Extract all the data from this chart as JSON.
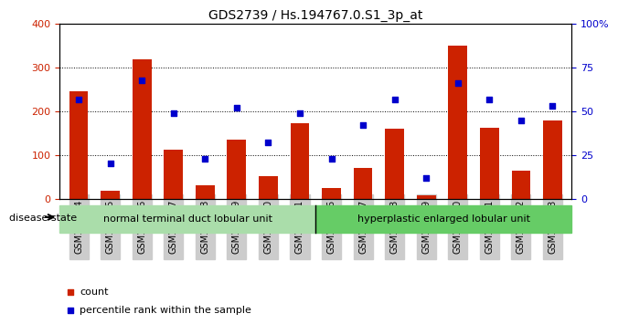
{
  "title": "GDS2739 / Hs.194767.0.S1_3p_at",
  "samples": [
    "GSM177454",
    "GSM177455",
    "GSM177456",
    "GSM177457",
    "GSM177458",
    "GSM177459",
    "GSM177460",
    "GSM177461",
    "GSM177446",
    "GSM177447",
    "GSM177448",
    "GSM177449",
    "GSM177450",
    "GSM177451",
    "GSM177452",
    "GSM177453"
  ],
  "counts": [
    245,
    18,
    320,
    113,
    30,
    135,
    52,
    172,
    25,
    70,
    160,
    8,
    350,
    163,
    63,
    178
  ],
  "percentiles": [
    57,
    20,
    68,
    49,
    23,
    52,
    32,
    49,
    23,
    42,
    57,
    12,
    66,
    57,
    45,
    53
  ],
  "bar_color": "#cc2200",
  "marker_color": "#0000cc",
  "group1_label": "normal terminal duct lobular unit",
  "group2_label": "hyperplastic enlarged lobular unit",
  "group1_color": "#aaddaa",
  "group2_color": "#66cc66",
  "disease_state_label": "disease state",
  "ylim_left": [
    0,
    400
  ],
  "ylim_right": [
    0,
    100
  ],
  "yticks_left": [
    0,
    100,
    200,
    300,
    400
  ],
  "yticks_right": [
    0,
    25,
    50,
    75,
    100
  ],
  "yticklabels_right": [
    "0",
    "25",
    "50",
    "75",
    "100%"
  ],
  "plot_bg": "#ffffff",
  "legend_count_color": "#cc2200",
  "legend_marker_color": "#0000cc",
  "n_group1": 8,
  "n_group2": 8
}
